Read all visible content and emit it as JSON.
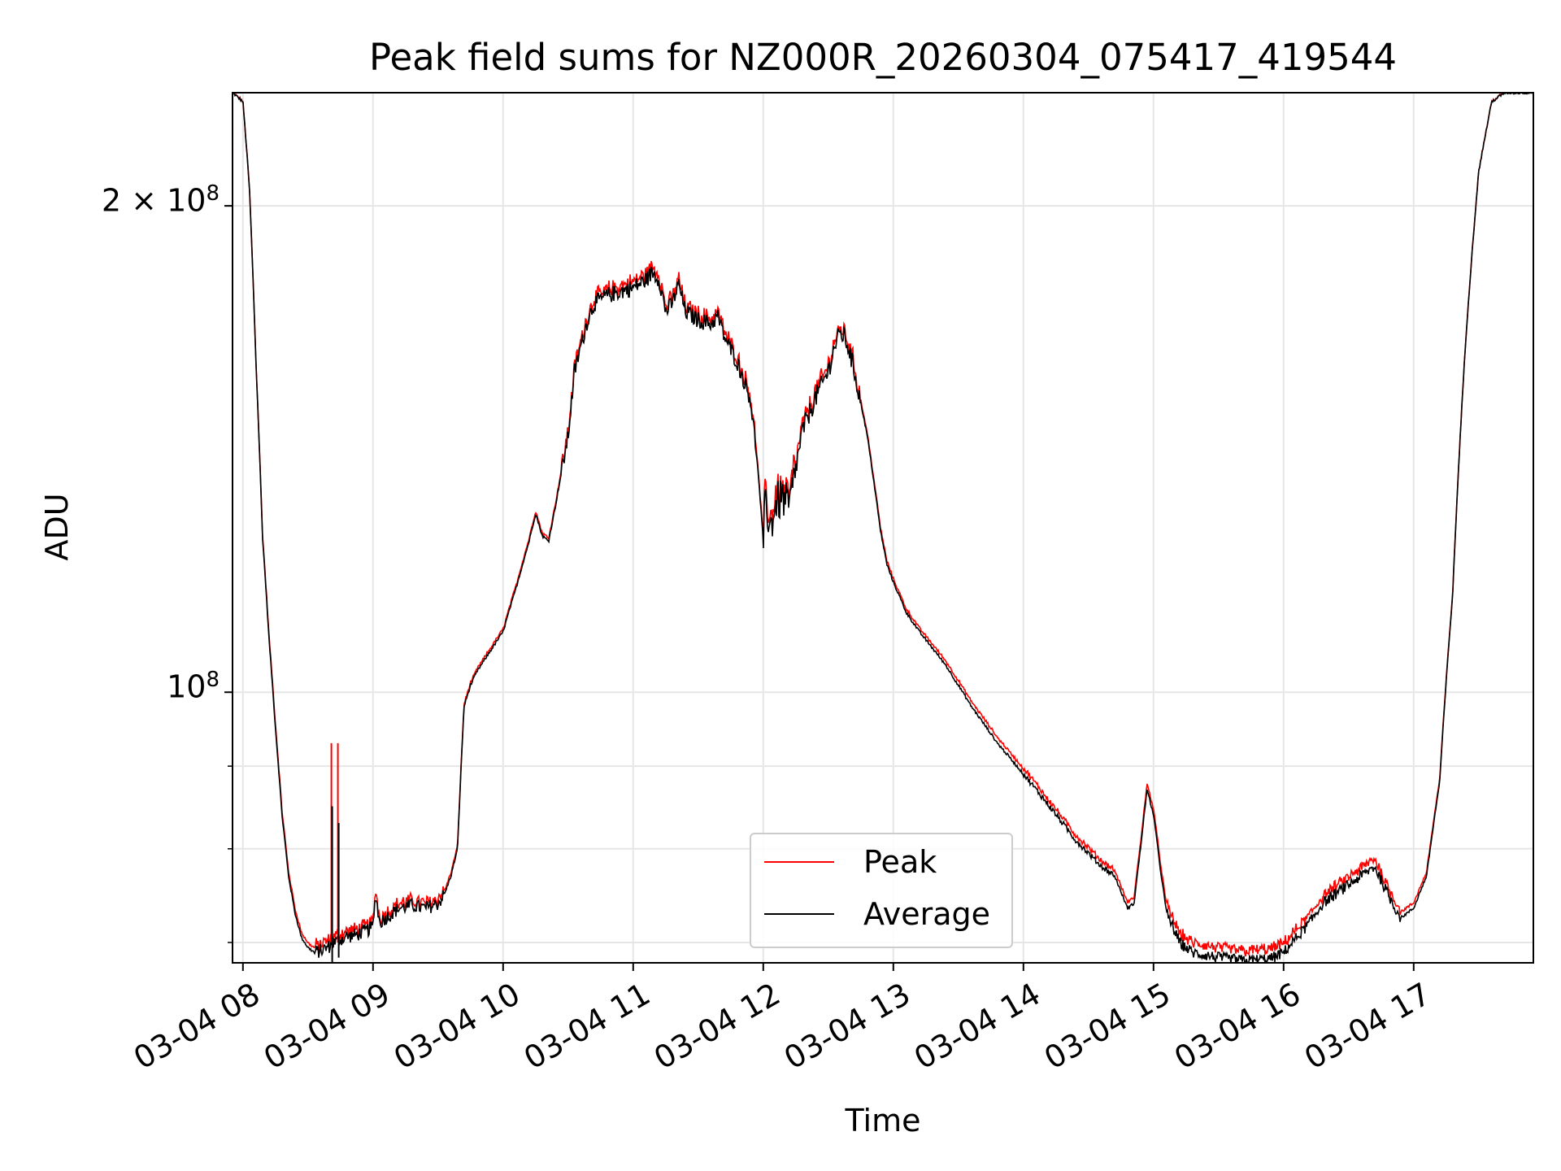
{
  "chart_data": {
    "type": "line",
    "title": "Peak field sums for NZ000R_20260304_075417_419544",
    "xlabel": "Time",
    "ylabel": "ADU",
    "yscale": "log",
    "ylim": [
      68000000,
      235000000
    ],
    "xlim_hours": [
      7.92,
      17.92
    ],
    "x_tick_hours": [
      8,
      9,
      10,
      11,
      12,
      13,
      14,
      15,
      16,
      17
    ],
    "x_tick_labels": [
      "03-04 08",
      "03-04 09",
      "03-04 10",
      "03-04 11",
      "03-04 12",
      "03-04 13",
      "03-04 14",
      "03-04 15",
      "03-04 16",
      "03-04 17"
    ],
    "y_major_ticks": [
      {
        "value": 100000000,
        "base": "10",
        "exp": "8",
        "mant": ""
      },
      {
        "value": 200000000,
        "base": "10",
        "exp": "8",
        "mant": "2 × "
      }
    ],
    "y_minor_ticks": [
      70000000,
      80000000,
      90000000
    ],
    "grid": true,
    "legend_position": "lower-center",
    "series": [
      {
        "name": "Peak",
        "color": "#ff0000"
      },
      {
        "name": "Average",
        "color": "#000000"
      }
    ],
    "average": [
      [
        7.92,
        235000000
      ],
      [
        8.0,
        232000000
      ],
      [
        8.05,
        205000000
      ],
      [
        8.1,
        160000000
      ],
      [
        8.15,
        125000000
      ],
      [
        8.2,
        108000000
      ],
      [
        8.25,
        95000000
      ],
      [
        8.3,
        84000000
      ],
      [
        8.35,
        77000000
      ],
      [
        8.4,
        73000000
      ],
      [
        8.45,
        70500000
      ],
      [
        8.5,
        69500000
      ],
      [
        8.55,
        69000000
      ],
      [
        8.6,
        69200000
      ],
      [
        8.65,
        69500000
      ],
      [
        8.7,
        70000000
      ],
      [
        8.75,
        70300000
      ],
      [
        8.8,
        70600000
      ],
      [
        8.85,
        70700000
      ],
      [
        8.9,
        70900000
      ],
      [
        8.95,
        71200000
      ],
      [
        9.0,
        71600000
      ],
      [
        9.02,
        75000000
      ],
      [
        9.05,
        72000000
      ],
      [
        9.1,
        72500000
      ],
      [
        9.15,
        73000000
      ],
      [
        9.2,
        73500000
      ],
      [
        9.3,
        73800000
      ],
      [
        9.4,
        73500000
      ],
      [
        9.5,
        74000000
      ],
      [
        9.55,
        75000000
      ],
      [
        9.6,
        77000000
      ],
      [
        9.65,
        80000000
      ],
      [
        9.7,
        98000000
      ],
      [
        9.75,
        101000000
      ],
      [
        9.8,
        103000000
      ],
      [
        9.9,
        106000000
      ],
      [
        10.0,
        109000000
      ],
      [
        10.1,
        116000000
      ],
      [
        10.2,
        124000000
      ],
      [
        10.25,
        129000000
      ],
      [
        10.3,
        125000000
      ],
      [
        10.35,
        124000000
      ],
      [
        10.4,
        130000000
      ],
      [
        10.45,
        137000000
      ],
      [
        10.5,
        144000000
      ],
      [
        10.55,
        158000000
      ],
      [
        10.6,
        164000000
      ],
      [
        10.65,
        170000000
      ],
      [
        10.7,
        174000000
      ],
      [
        10.8,
        176000000
      ],
      [
        10.9,
        177000000
      ],
      [
        11.0,
        178000000
      ],
      [
        11.1,
        180000000
      ],
      [
        11.15,
        182000000
      ],
      [
        11.2,
        180000000
      ],
      [
        11.25,
        172000000
      ],
      [
        11.3,
        174000000
      ],
      [
        11.35,
        179000000
      ],
      [
        11.4,
        172000000
      ],
      [
        11.5,
        170000000
      ],
      [
        11.6,
        169000000
      ],
      [
        11.65,
        171000000
      ],
      [
        11.7,
        166000000
      ],
      [
        11.8,
        160000000
      ],
      [
        11.9,
        152000000
      ],
      [
        11.95,
        140000000
      ],
      [
        12.0,
        124000000
      ],
      [
        12.02,
        132000000
      ],
      [
        12.05,
        126000000
      ],
      [
        12.1,
        131000000
      ],
      [
        12.15,
        132000000
      ],
      [
        12.2,
        130000000
      ],
      [
        12.3,
        145000000
      ],
      [
        12.4,
        152000000
      ],
      [
        12.5,
        158000000
      ],
      [
        12.55,
        164000000
      ],
      [
        12.6,
        167000000
      ],
      [
        12.65,
        164000000
      ],
      [
        12.7,
        158000000
      ],
      [
        12.8,
        144000000
      ],
      [
        12.9,
        126000000
      ],
      [
        12.95,
        120000000
      ],
      [
        13.0,
        117000000
      ],
      [
        13.1,
        112000000
      ],
      [
        13.2,
        109000000
      ],
      [
        13.4,
        104000000
      ],
      [
        13.6,
        98000000
      ],
      [
        13.8,
        93000000
      ],
      [
        14.0,
        89000000
      ],
      [
        14.2,
        85000000
      ],
      [
        14.4,
        81000000
      ],
      [
        14.6,
        78000000
      ],
      [
        14.7,
        77000000
      ],
      [
        14.8,
        73500000
      ],
      [
        14.85,
        74000000
      ],
      [
        14.9,
        80000000
      ],
      [
        14.95,
        87000000
      ],
      [
        15.0,
        84000000
      ],
      [
        15.05,
        78000000
      ],
      [
        15.1,
        73000000
      ],
      [
        15.2,
        70000000
      ],
      [
        15.3,
        69000000
      ],
      [
        15.5,
        68500000
      ],
      [
        15.7,
        68200000
      ],
      [
        15.9,
        68400000
      ],
      [
        16.0,
        69000000
      ],
      [
        16.1,
        70500000
      ],
      [
        16.2,
        72000000
      ],
      [
        16.3,
        74000000
      ],
      [
        16.4,
        75000000
      ],
      [
        16.5,
        76000000
      ],
      [
        16.6,
        77000000
      ],
      [
        16.7,
        78000000
      ],
      [
        16.8,
        75000000
      ],
      [
        16.9,
        72500000
      ],
      [
        17.0,
        73500000
      ],
      [
        17.1,
        77000000
      ],
      [
        17.2,
        88000000
      ],
      [
        17.3,
        115000000
      ],
      [
        17.4,
        165000000
      ],
      [
        17.5,
        210000000
      ],
      [
        17.6,
        232000000
      ],
      [
        17.7,
        235000000
      ],
      [
        17.92,
        235000000
      ]
    ],
    "peak_offsets": [
      [
        8.0,
        0
      ],
      [
        8.2,
        500000
      ],
      [
        8.6,
        400000
      ],
      [
        8.9,
        300000
      ],
      [
        9.5,
        300000
      ],
      [
        9.8,
        300000
      ],
      [
        10.5,
        500000
      ],
      [
        11.0,
        800000
      ],
      [
        11.5,
        700000
      ],
      [
        12.0,
        600000
      ],
      [
        12.6,
        500000
      ],
      [
        13.2,
        500000
      ],
      [
        13.8,
        700000
      ],
      [
        14.4,
        500000
      ],
      [
        14.9,
        600000
      ],
      [
        15.0,
        700000
      ],
      [
        15.3,
        800000
      ],
      [
        15.9,
        800000
      ],
      [
        16.2,
        600000
      ],
      [
        16.7,
        700000
      ],
      [
        17.0,
        500000
      ],
      [
        17.5,
        0
      ],
      [
        17.92,
        0
      ]
    ],
    "spikes": [
      {
        "hour": 8.68,
        "peak": 93000000,
        "avg_low": 68000000,
        "avg_high": 85000000
      },
      {
        "hour": 8.73,
        "peak": 93000000,
        "avg_low": 68500000,
        "avg_high": 83000000
      }
    ]
  }
}
